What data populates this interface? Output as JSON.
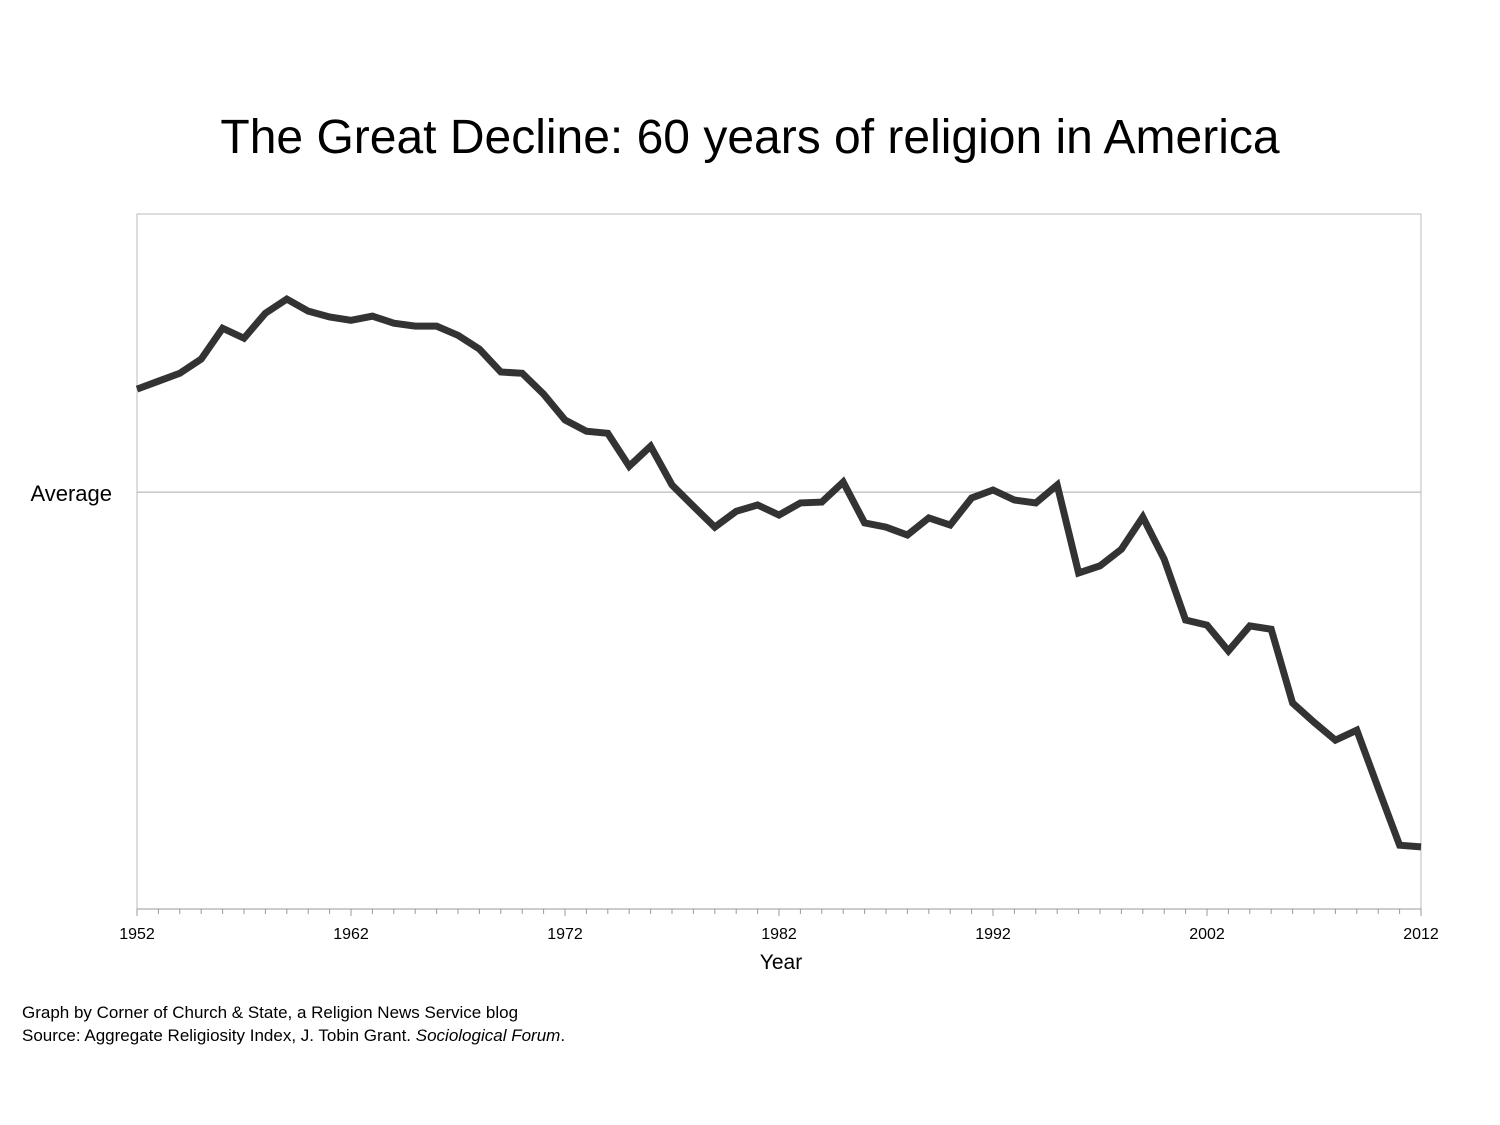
{
  "chart_data": {
    "type": "line",
    "title": "The Great Decline: 60 years of religion in America",
    "xlabel": "Year",
    "ylabel": "",
    "y_reference_label": "Average",
    "y_reference_value": 0,
    "x_tick_labels": [
      "1952",
      "1962",
      "1972",
      "1982",
      "1992",
      "2002",
      "2012"
    ],
    "xlim": [
      1952,
      2012
    ],
    "ylim": [
      -100,
      66.7
    ],
    "grid": false,
    "line_color": "#333333",
    "x": [
      1952,
      1953,
      1954,
      1955,
      1956,
      1957,
      1958,
      1959,
      1960,
      1961,
      1962,
      1963,
      1964,
      1965,
      1966,
      1967,
      1968,
      1969,
      1970,
      1971,
      1972,
      1973,
      1974,
      1975,
      1976,
      1977,
      1978,
      1979,
      1980,
      1981,
      1982,
      1983,
      1984,
      1985,
      1986,
      1987,
      1988,
      1989,
      1990,
      1991,
      1992,
      1993,
      1994,
      1995,
      1996,
      1997,
      1998,
      1999,
      2000,
      2001,
      2002,
      2003,
      2004,
      2005,
      2006,
      2007,
      2008,
      2009,
      2010,
      2011,
      2012
    ],
    "values": [
      24.7,
      26.6,
      28.5,
      31.9,
      39.3,
      36.9,
      42.9,
      46.3,
      43.4,
      42.0,
      41.2,
      42.2,
      40.5,
      39.8,
      39.8,
      37.6,
      34.3,
      28.8,
      28.5,
      23.5,
      17.3,
      14.6,
      14.1,
      6.2,
      11.0,
      1.7,
      -3.4,
      -8.4,
      -4.6,
      -3.1,
      -5.5,
      -2.6,
      -2.4,
      2.4,
      -7.4,
      -8.4,
      -10.3,
      -6.2,
      -7.9,
      -1.4,
      0.5,
      -1.9,
      -2.6,
      1.7,
      -19.4,
      -17.7,
      -13.7,
      -6.0,
      -16.1,
      -30.7,
      -31.9,
      -38.1,
      -32.1,
      -32.9,
      -50.6,
      -55.2,
      -59.5,
      -57.1,
      -71.0,
      -84.7,
      -85.1
    ]
  },
  "footer": {
    "credit": "Graph by Corner of Church & State, a Religion News Service blog",
    "source_prefix": "Source: Aggregate Religiosity Index, J. Tobin Grant. ",
    "source_journal": "Sociological Forum",
    "source_suffix": "."
  }
}
